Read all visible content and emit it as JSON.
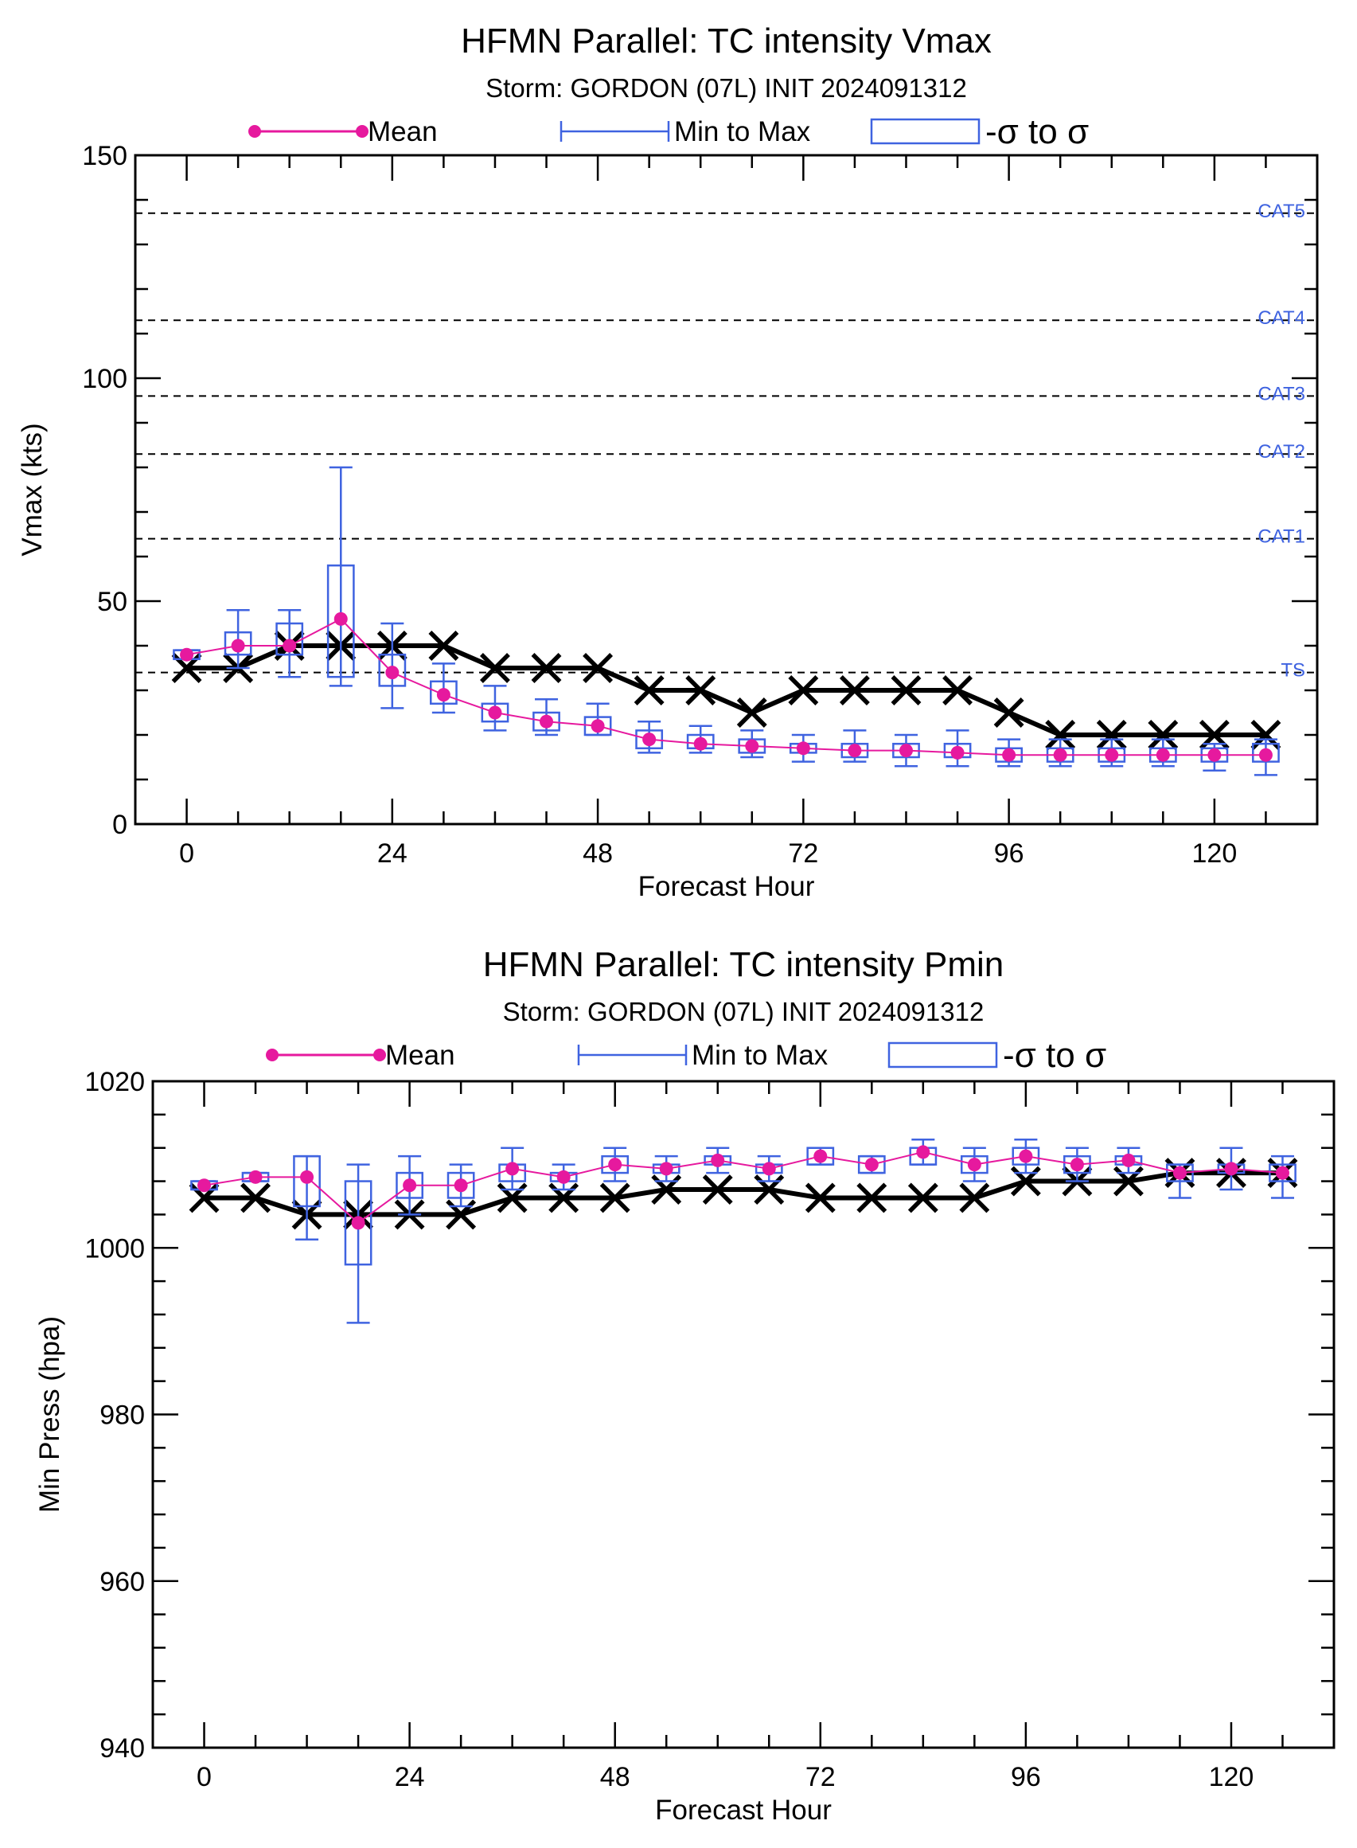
{
  "chart_data": [
    {
      "type": "line",
      "title": "HFMN Parallel: TC intensity Vmax",
      "subtitle": "Storm: GORDON (07L) INIT 2024091312",
      "xlabel": "Forecast Hour",
      "ylabel": "Vmax (kts)",
      "xlim": [
        -6,
        132
      ],
      "ylim": [
        0,
        150
      ],
      "xticks": [
        0,
        24,
        48,
        72,
        96,
        120
      ],
      "yticks": [
        0,
        50,
        100,
        150
      ],
      "legend": {
        "position": "top",
        "items": [
          {
            "label": "Mean",
            "color": "#e6199e"
          },
          {
            "label": "Min to Max",
            "color": "#3f63e0"
          },
          {
            "label": "-σ to σ",
            "color": "#3f63e0"
          }
        ]
      },
      "reference_lines": [
        {
          "label": "TS",
          "y": 34
        },
        {
          "label": "CAT1",
          "y": 64
        },
        {
          "label": "CAT2",
          "y": 83
        },
        {
          "label": "CAT3",
          "y": 96
        },
        {
          "label": "CAT4",
          "y": 113
        },
        {
          "label": "CAT5",
          "y": 137
        }
      ],
      "x": [
        0,
        6,
        12,
        18,
        24,
        30,
        36,
        42,
        48,
        54,
        60,
        66,
        72,
        78,
        84,
        90,
        96,
        102,
        108,
        114,
        120,
        126
      ],
      "series": [
        {
          "name": "Mean",
          "color": "#e6199e",
          "values": [
            38,
            40,
            40,
            46,
            34,
            29,
            25,
            23,
            22,
            19,
            18,
            17.5,
            17,
            16.5,
            16.5,
            16,
            15.5,
            15.5,
            15.5,
            15.5,
            15.5,
            15.5
          ]
        },
        {
          "color": "#000000",
          "values": [
            35,
            35,
            40,
            40,
            40,
            40,
            35,
            35,
            35,
            30,
            30,
            25,
            30,
            30,
            30,
            30,
            25,
            20,
            20,
            20,
            20,
            20
          ]
        }
      ],
      "min": [
        37,
        35,
        33,
        31,
        26,
        25,
        21,
        20,
        20,
        16,
        16,
        15,
        14,
        14,
        13,
        13,
        13,
        13,
        13,
        13,
        12,
        11
      ],
      "max": [
        39,
        48,
        48,
        80,
        45,
        36,
        31,
        28,
        27,
        23,
        22,
        21,
        20,
        21,
        20,
        21,
        19,
        19,
        19,
        19,
        18,
        19
      ],
      "sigma_low": [
        37,
        38,
        38,
        33,
        31,
        27,
        23,
        21,
        20,
        17,
        17,
        16,
        16,
        15,
        15,
        15,
        14,
        14,
        14,
        14,
        14,
        14
      ],
      "sigma_high": [
        39,
        43,
        45,
        58,
        38,
        32,
        27,
        25,
        24,
        21,
        20,
        19,
        18,
        18,
        18,
        18,
        17,
        17,
        17,
        17,
        17,
        18
      ]
    },
    {
      "type": "line",
      "title": "HFMN Parallel: TC intensity Pmin",
      "subtitle": "Storm: GORDON (07L) INIT 2024091312",
      "xlabel": "Forecast Hour",
      "ylabel": "Min Press (hpa)",
      "xlim": [
        -6,
        132
      ],
      "ylim": [
        940,
        1020
      ],
      "xticks": [
        0,
        24,
        48,
        72,
        96,
        120
      ],
      "yticks": [
        940,
        960,
        980,
        1000,
        1020
      ],
      "legend": {
        "position": "top",
        "items": [
          {
            "label": "Mean",
            "color": "#e6199e"
          },
          {
            "label": "Min to Max",
            "color": "#3f63e0"
          },
          {
            "label": "-σ to σ",
            "color": "#3f63e0"
          }
        ]
      },
      "x": [
        0,
        6,
        12,
        18,
        24,
        30,
        36,
        42,
        48,
        54,
        60,
        66,
        72,
        78,
        84,
        90,
        96,
        102,
        108,
        114,
        120,
        126
      ],
      "series": [
        {
          "name": "Mean",
          "color": "#e6199e",
          "values": [
            1007.5,
            1008.5,
            1008.5,
            1003,
            1007.5,
            1007.5,
            1009.5,
            1008.5,
            1010,
            1009.5,
            1010.5,
            1009.5,
            1011,
            1010,
            1011.5,
            1010,
            1011,
            1010,
            1010.5,
            1009,
            1009.5,
            1009
          ]
        },
        {
          "color": "#000000",
          "values": [
            1006,
            1006,
            1004,
            1004,
            1004,
            1004,
            1006,
            1006,
            1006,
            1007,
            1007,
            1007,
            1006,
            1006,
            1006,
            1006,
            1008,
            1008,
            1008,
            1009,
            1009,
            1009
          ]
        }
      ],
      "min": [
        1007,
        1008,
        1001,
        991,
        1004,
        1005,
        1007,
        1007,
        1008,
        1008,
        1009,
        1008,
        1010,
        1009,
        1010,
        1008,
        1009,
        1008,
        1009,
        1006,
        1007,
        1006
      ],
      "max": [
        1008,
        1009,
        1011,
        1010,
        1011,
        1010,
        1012,
        1010,
        1012,
        1011,
        1012,
        1011,
        1012,
        1011,
        1013,
        1012,
        1013,
        1012,
        1012,
        1010,
        1012,
        1011
      ],
      "sigma_low": [
        1007,
        1008,
        1005,
        998,
        1006,
        1006,
        1008,
        1008,
        1009,
        1009,
        1010,
        1009,
        1010,
        1009,
        1010,
        1009,
        1010,
        1009,
        1010,
        1008,
        1009,
        1008
      ],
      "sigma_high": [
        1008,
        1009,
        1011,
        1008,
        1009,
        1009,
        1010,
        1009,
        1011,
        1010,
        1011,
        1010,
        1012,
        1011,
        1012,
        1011,
        1012,
        1011,
        1011,
        1010,
        1010,
        1010
      ]
    }
  ]
}
